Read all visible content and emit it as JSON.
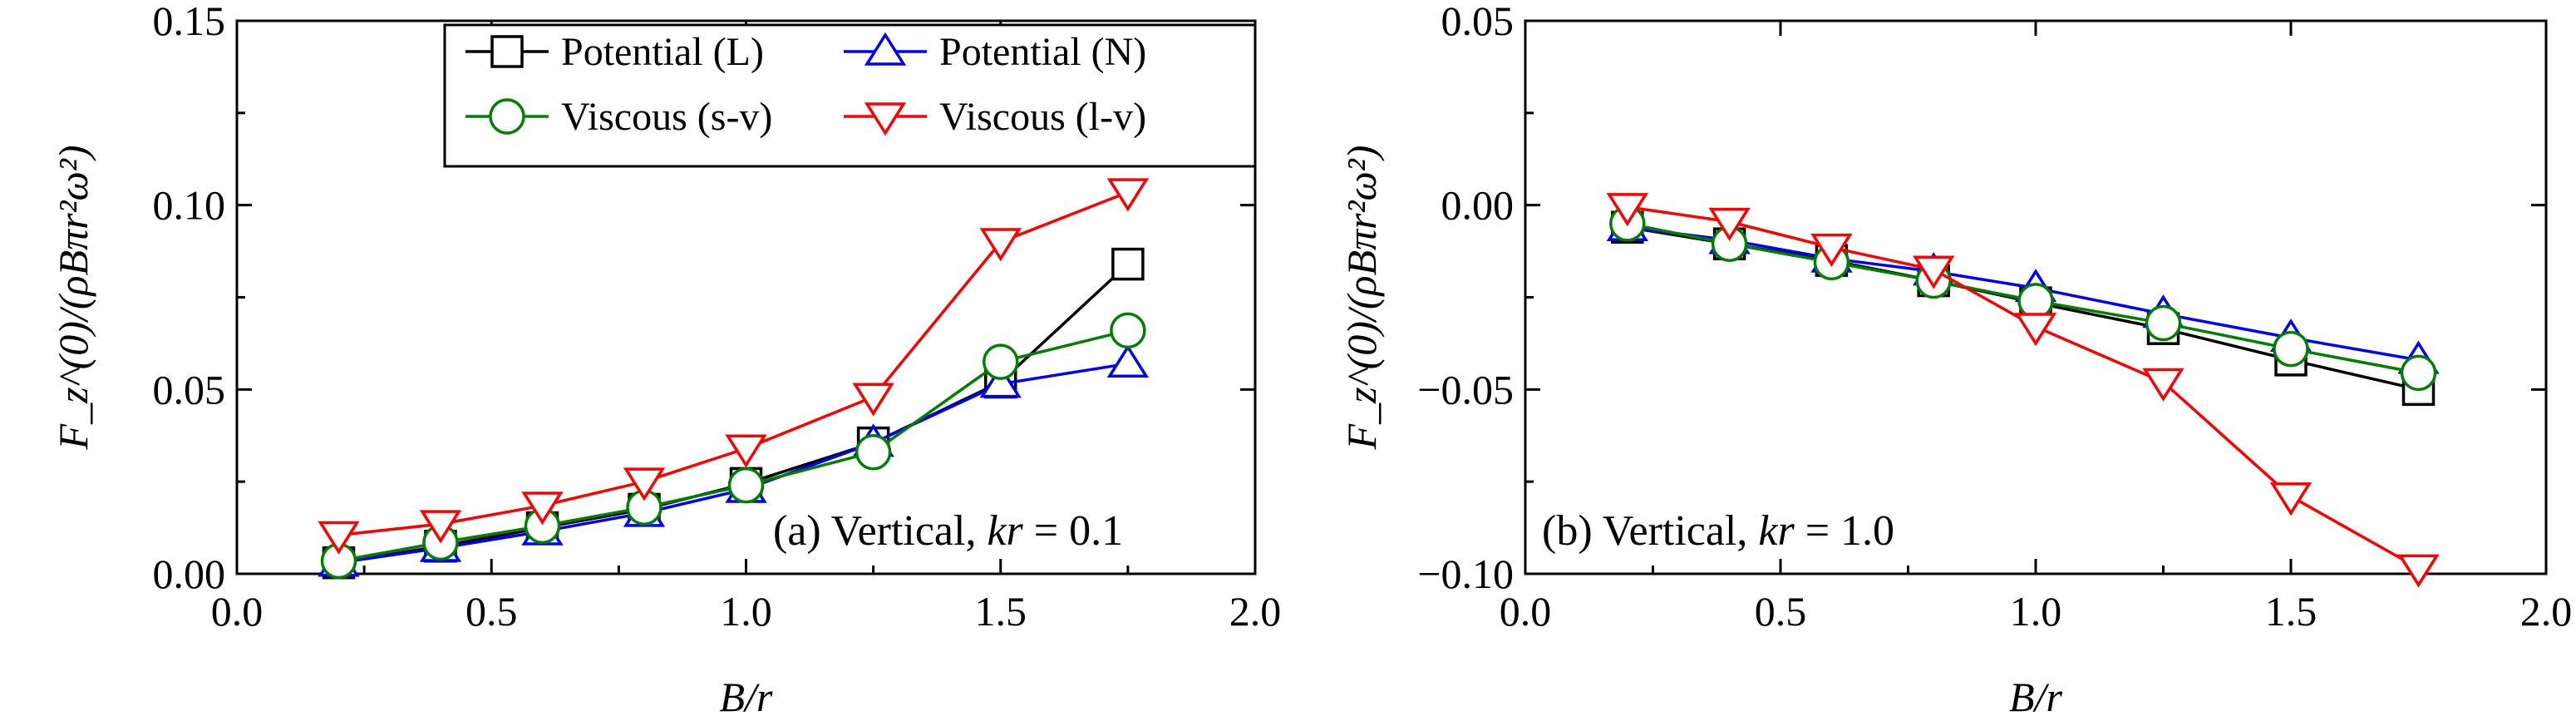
{
  "chart_data": [
    {
      "type": "line",
      "panel_label": "(a) Vertical, kr = 0.1",
      "panel_label_parts": {
        "prefix": "(a) Vertical, ",
        "var": "kr",
        "suffix": " = 0.1"
      },
      "xlabel": "B/r",
      "ylabel": "F_z^(0)/(ρBπr²ω²)",
      "xlim": [
        0.0,
        2.0
      ],
      "ylim": [
        0.0,
        0.15
      ],
      "xticks": [
        "0.0",
        "0.5",
        "1.0",
        "1.5",
        "2.0"
      ],
      "xtick_values": [
        0.0,
        0.5,
        1.0,
        1.5,
        2.0
      ],
      "yticks": [
        "0.00",
        "0.05",
        "0.10",
        "0.15"
      ],
      "ytick_values": [
        0.0,
        0.05,
        0.1,
        0.15
      ],
      "x": [
        0.2,
        0.4,
        0.6,
        0.8,
        1.0,
        1.25,
        1.5,
        1.75
      ],
      "grid": false,
      "legend": {
        "placement": "top-right",
        "columns": 2
      },
      "series": [
        {
          "name": "Potential (L)",
          "color": "#000000",
          "marker": "square",
          "values": [
            0.003,
            0.0075,
            0.0125,
            0.0175,
            0.0245,
            0.0355,
            0.052,
            0.084
          ]
        },
        {
          "name": "Potential (N)",
          "color": "#0000ff",
          "marker": "triangle-up",
          "values": [
            0.003,
            0.007,
            0.0115,
            0.0165,
            0.023,
            0.0355,
            0.0515,
            0.057
          ]
        },
        {
          "name": "Viscous (s-v)",
          "color": "#008000",
          "marker": "circle",
          "values": [
            0.0035,
            0.0085,
            0.013,
            0.018,
            0.024,
            0.033,
            0.0575,
            0.066
          ]
        },
        {
          "name": "Viscous (l-v)",
          "color": "#ff0000",
          "marker": "triangle-down",
          "values": [
            0.0105,
            0.0135,
            0.0185,
            0.025,
            0.034,
            0.048,
            0.09,
            0.1035
          ]
        }
      ]
    },
    {
      "type": "line",
      "panel_label": "(b) Vertical, kr = 1.0",
      "panel_label_parts": {
        "prefix": "(b) Vertical, ",
        "var": "kr",
        "suffix": " = 1.0"
      },
      "xlabel": "B/r",
      "ylabel": "F_z^(0)/(ρBπr²ω²)",
      "xlim": [
        0.0,
        2.0
      ],
      "ylim": [
        -0.1,
        0.05
      ],
      "xticks": [
        "0.0",
        "0.5",
        "1.0",
        "1.5",
        "2.0"
      ],
      "xtick_values": [
        0.0,
        0.5,
        1.0,
        1.5,
        2.0
      ],
      "yticks": [
        "−0.10",
        "−0.05",
        "0.00",
        "0.05"
      ],
      "ytick_values": [
        -0.1,
        -0.05,
        0.0,
        0.05
      ],
      "x": [
        0.2,
        0.4,
        0.6,
        0.8,
        1.0,
        1.25,
        1.5,
        1.75
      ],
      "grid": false,
      "series": [
        {
          "color": "#000000",
          "marker": "square",
          "values": [
            -0.006,
            -0.0105,
            -0.015,
            -0.0205,
            -0.0265,
            -0.0335,
            -0.042,
            -0.05
          ]
        },
        {
          "color": "#0000ff",
          "marker": "triangle-up",
          "values": [
            -0.006,
            -0.0095,
            -0.0145,
            -0.018,
            -0.0225,
            -0.0295,
            -0.036,
            -0.042
          ]
        },
        {
          "color": "#008000",
          "marker": "circle",
          "values": [
            -0.005,
            -0.0105,
            -0.0155,
            -0.0205,
            -0.026,
            -0.032,
            -0.039,
            -0.0455
          ]
        },
        {
          "color": "#ff0000",
          "marker": "triangle-down",
          "values": [
            -0.0005,
            -0.0045,
            -0.0115,
            -0.0175,
            -0.033,
            -0.048,
            -0.079,
            -0.0985
          ]
        }
      ]
    }
  ]
}
